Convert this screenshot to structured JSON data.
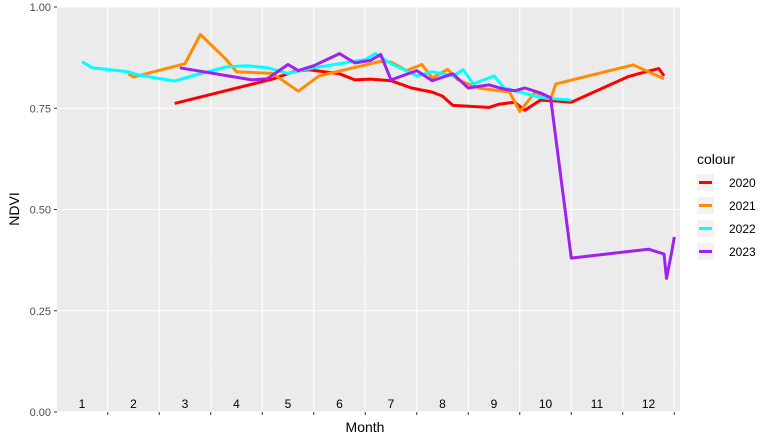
{
  "chart_data": {
    "type": "line",
    "xlabel": "Month",
    "ylabel": "NDVI",
    "xlim": [
      1,
      12.5
    ],
    "ylim": [
      0,
      1
    ],
    "yticks": [
      "0.00",
      "0.25",
      "0.50",
      "0.75",
      "1.00"
    ],
    "month_labels": [
      "1",
      "2",
      "3",
      "4",
      "5",
      "6",
      "7",
      "8",
      "9",
      "10",
      "11",
      "12"
    ],
    "legend_title": "colour",
    "legend_position": "right",
    "grid": true,
    "series": [
      {
        "name": "2020",
        "color": "#ff0000",
        "points": [
          [
            2.8,
            0.762
          ],
          [
            4.7,
            0.822
          ],
          [
            5.1,
            0.84
          ],
          [
            5.4,
            0.845
          ],
          [
            6,
            0.835
          ],
          [
            6.3,
            0.82
          ],
          [
            6.6,
            0.822
          ],
          [
            7,
            0.818
          ],
          [
            7.4,
            0.8
          ],
          [
            7.8,
            0.79
          ],
          [
            8,
            0.78
          ],
          [
            8.2,
            0.757
          ],
          [
            8.5,
            0.755
          ],
          [
            8.9,
            0.752
          ],
          [
            9.1,
            0.76
          ],
          [
            9.4,
            0.765
          ],
          [
            9.6,
            0.745
          ],
          [
            9.9,
            0.77
          ],
          [
            10.2,
            0.768
          ],
          [
            10.5,
            0.765
          ],
          [
            11.6,
            0.828
          ],
          [
            11.8,
            0.835
          ],
          [
            12.2,
            0.848
          ],
          [
            12.3,
            0.83
          ]
        ]
      },
      {
        "name": "2021",
        "color": "#ff8c00",
        "points": [
          [
            1.9,
            0.835
          ],
          [
            2,
            0.827
          ],
          [
            3,
            0.86
          ],
          [
            3.3,
            0.932
          ],
          [
            3.8,
            0.87
          ],
          [
            4,
            0.84
          ],
          [
            4.7,
            0.836
          ],
          [
            5.2,
            0.792
          ],
          [
            5.6,
            0.83
          ],
          [
            6.8,
            0.866
          ],
          [
            7,
            0.864
          ],
          [
            7.3,
            0.843
          ],
          [
            7.6,
            0.858
          ],
          [
            7.8,
            0.825
          ],
          [
            8.1,
            0.846
          ],
          [
            8.3,
            0.82
          ],
          [
            8.7,
            0.8
          ],
          [
            9.3,
            0.79
          ],
          [
            9.5,
            0.742
          ],
          [
            9.8,
            0.79
          ],
          [
            10.1,
            0.772
          ],
          [
            10.2,
            0.81
          ],
          [
            11.7,
            0.857
          ],
          [
            12.3,
            0.823
          ]
        ]
      },
      {
        "name": "2022",
        "color": "#00ffff",
        "points": [
          [
            1,
            0.865
          ],
          [
            1.2,
            0.85
          ],
          [
            1.9,
            0.84
          ],
          [
            2.1,
            0.832
          ],
          [
            2.8,
            0.817
          ],
          [
            3.2,
            0.832
          ],
          [
            3.8,
            0.852
          ],
          [
            4.2,
            0.855
          ],
          [
            4.6,
            0.85
          ],
          [
            5,
            0.836
          ],
          [
            5.5,
            0.85
          ],
          [
            6,
            0.86
          ],
          [
            6.5,
            0.87
          ],
          [
            6.7,
            0.885
          ],
          [
            7,
            0.86
          ],
          [
            7.5,
            0.83
          ],
          [
            7.8,
            0.84
          ],
          [
            8.2,
            0.83
          ],
          [
            8.4,
            0.845
          ],
          [
            8.6,
            0.81
          ],
          [
            9,
            0.83
          ],
          [
            9.2,
            0.8
          ],
          [
            9.5,
            0.79
          ],
          [
            9.8,
            0.78
          ],
          [
            10,
            0.775
          ],
          [
            10.5,
            0.77
          ]
        ]
      },
      {
        "name": "2023",
        "color": "#a020f0",
        "points": [
          [
            2.9,
            0.85
          ],
          [
            4.3,
            0.82
          ],
          [
            4.6,
            0.823
          ],
          [
            5,
            0.858
          ],
          [
            5.2,
            0.843
          ],
          [
            5.5,
            0.855
          ],
          [
            6,
            0.885
          ],
          [
            6.3,
            0.862
          ],
          [
            6.6,
            0.868
          ],
          [
            6.8,
            0.883
          ],
          [
            7,
            0.82
          ],
          [
            7.5,
            0.843
          ],
          [
            7.8,
            0.818
          ],
          [
            8.2,
            0.835
          ],
          [
            8.5,
            0.8
          ],
          [
            8.9,
            0.808
          ],
          [
            9.2,
            0.797
          ],
          [
            9.4,
            0.793
          ],
          [
            9.6,
            0.8
          ],
          [
            9.9,
            0.788
          ],
          [
            10.1,
            0.776
          ],
          [
            10.5,
            0.38
          ],
          [
            12,
            0.402
          ],
          [
            12.3,
            0.39
          ],
          [
            12.35,
            0.33
          ],
          [
            12.45,
            0.395
          ],
          [
            12.5,
            0.432
          ]
        ]
      }
    ]
  }
}
